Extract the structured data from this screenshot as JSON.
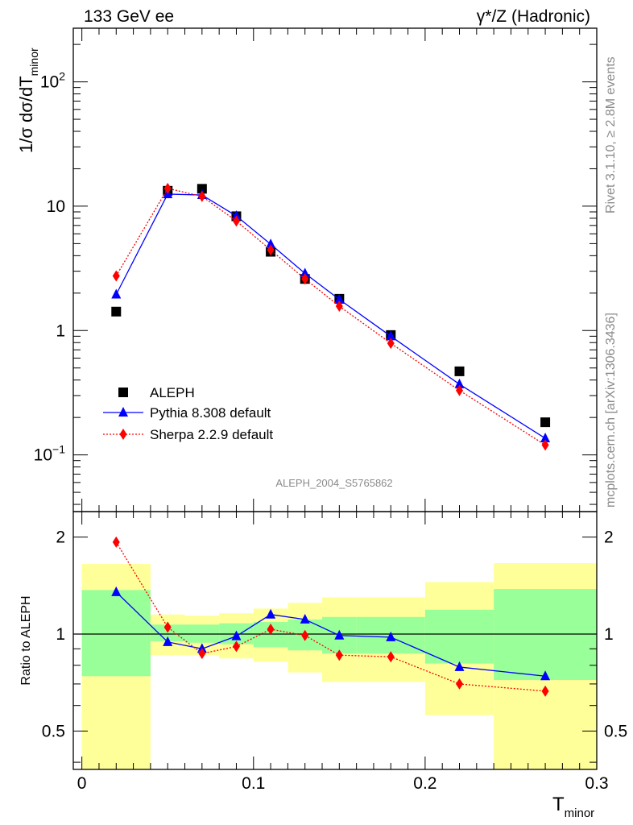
{
  "header": {
    "left_title": "133 GeV ee",
    "right_title": "γ*/Z (Hadronic)"
  },
  "side_text": {
    "rivet": "Rivet 3.1.10, ≥ 2.8M events",
    "mcplots": "mcplots.cern.ch [arXiv:1306.3436]"
  },
  "watermark": "ALEPH_2004_S5765862",
  "colors": {
    "data": "#000000",
    "pythia": "#0000ff",
    "sherpa": "#ff0000",
    "band_inner": "#99ff99",
    "band_outer": "#ffff99"
  },
  "chart_data": [
    {
      "type": "scatter",
      "panel": "main",
      "ylabel_parts": {
        "prefix": "1/σ  dσ/dT",
        "sub": "minor"
      },
      "yscale": "log",
      "ylim": [
        0.035,
        270
      ],
      "xlim": [
        -0.005,
        0.3
      ],
      "ytick_labels": [
        {
          "value": 0.1,
          "base": "10",
          "exp": "−1"
        },
        {
          "value": 1,
          "text": "1"
        },
        {
          "value": 10,
          "text": "10"
        },
        {
          "value": 100,
          "base": "10",
          "exp": "2"
        }
      ],
      "legend_position": "bottom-left",
      "series": [
        {
          "name": "ALEPH",
          "marker": "square",
          "x": [
            0.02,
            0.05,
            0.07,
            0.09,
            0.11,
            0.13,
            0.15,
            0.18,
            0.22,
            0.27
          ],
          "y": [
            1.42,
            13.3,
            13.8,
            8.3,
            4.3,
            2.6,
            1.8,
            0.92,
            0.47,
            0.183
          ]
        },
        {
          "name": "Pythia 8.308 default",
          "marker": "triangle",
          "line": "solid",
          "x": [
            0.02,
            0.05,
            0.07,
            0.09,
            0.11,
            0.13,
            0.15,
            0.18,
            0.22,
            0.27
          ],
          "y": [
            1.95,
            12.5,
            12.3,
            8.35,
            4.95,
            2.88,
            1.78,
            0.9,
            0.37,
            0.136
          ]
        },
        {
          "name": "Sherpa 2.2.9 default",
          "marker": "diamond",
          "line": "dotted",
          "x": [
            0.02,
            0.05,
            0.07,
            0.09,
            0.11,
            0.13,
            0.15,
            0.18,
            0.22,
            0.27
          ],
          "y": [
            2.75,
            13.9,
            12.0,
            7.6,
            4.45,
            2.6,
            1.57,
            0.79,
            0.33,
            0.12
          ]
        }
      ]
    },
    {
      "type": "line",
      "panel": "ratio",
      "ylabel": "Ratio to ALEPH",
      "xlabel_parts": {
        "base": "T",
        "sub": "minor"
      },
      "yscale": "log",
      "ylim": [
        0.38,
        2.4
      ],
      "xlim": [
        -0.005,
        0.3
      ],
      "xtick_labels": [
        "0",
        "0.1",
        "0.2",
        "0.3"
      ],
      "ytick_labels": [
        "0.5",
        "1",
        "2"
      ],
      "reference_line": 1,
      "bands": [
        {
          "x0": 0.0,
          "x1": 0.04,
          "inner": [
            0.74,
            1.37
          ],
          "outer": [
            0.3,
            1.65
          ]
        },
        {
          "x0": 0.04,
          "x1": 0.06,
          "inner": [
            0.95,
            1.07
          ],
          "outer": [
            0.86,
            1.15
          ]
        },
        {
          "x0": 0.06,
          "x1": 0.08,
          "inner": [
            0.94,
            1.07
          ],
          "outer": [
            0.86,
            1.14
          ]
        },
        {
          "x0": 0.08,
          "x1": 0.1,
          "inner": [
            0.93,
            1.08
          ],
          "outer": [
            0.84,
            1.16
          ]
        },
        {
          "x0": 0.1,
          "x1": 0.12,
          "inner": [
            0.91,
            1.09
          ],
          "outer": [
            0.82,
            1.2
          ]
        },
        {
          "x0": 0.12,
          "x1": 0.14,
          "inner": [
            0.89,
            1.11
          ],
          "outer": [
            0.76,
            1.25
          ]
        },
        {
          "x0": 0.14,
          "x1": 0.16,
          "inner": [
            0.87,
            1.13
          ],
          "outer": [
            0.71,
            1.3
          ]
        },
        {
          "x0": 0.16,
          "x1": 0.2,
          "inner": [
            0.87,
            1.13
          ],
          "outer": [
            0.71,
            1.3
          ]
        },
        {
          "x0": 0.2,
          "x1": 0.24,
          "inner": [
            0.81,
            1.19
          ],
          "outer": [
            0.56,
            1.45
          ]
        },
        {
          "x0": 0.24,
          "x1": 0.3,
          "inner": [
            0.72,
            1.38
          ],
          "outer": [
            0.3,
            1.66
          ]
        }
      ],
      "series": [
        {
          "name": "Pythia 8.308 default",
          "x": [
            0.02,
            0.05,
            0.07,
            0.09,
            0.11,
            0.13,
            0.15,
            0.18,
            0.22,
            0.27
          ],
          "y": [
            1.35,
            0.945,
            0.9,
            0.985,
            1.15,
            1.11,
            0.99,
            0.978,
            0.79,
            0.74
          ]
        },
        {
          "name": "Sherpa 2.2.9 default",
          "x": [
            0.02,
            0.05,
            0.07,
            0.09,
            0.11,
            0.13,
            0.15,
            0.18,
            0.22,
            0.27
          ],
          "y": [
            1.93,
            1.05,
            0.87,
            0.915,
            1.035,
            0.99,
            0.86,
            0.85,
            0.7,
            0.665
          ]
        }
      ]
    }
  ]
}
